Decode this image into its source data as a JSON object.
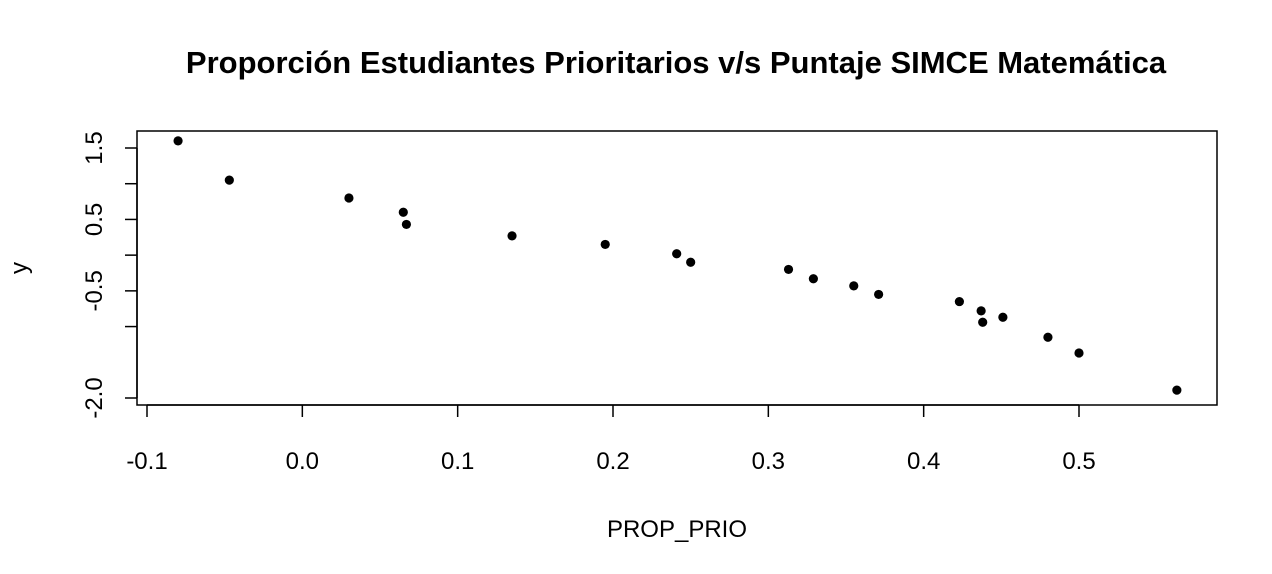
{
  "chart_data": {
    "type": "scatter",
    "title": "Proporción Estudiantes Prioritarios v/s Puntaje SIMCE Matemática",
    "xlabel": "PROP_PRIO",
    "ylabel": "y",
    "xlim": [
      -0.1,
      0.57
    ],
    "ylim": [
      -2.0,
      1.7
    ],
    "x_ticks": [
      -0.1,
      0.0,
      0.1,
      0.2,
      0.3,
      0.4,
      0.5
    ],
    "x_tick_labels": [
      "-0.1",
      "0.0",
      "0.1",
      "0.2",
      "0.3",
      "0.4",
      "0.5"
    ],
    "y_ticks": [
      -2.0,
      -1.0,
      -0.5,
      0.0,
      0.5,
      1.0,
      1.5
    ],
    "y_tick_labels": [
      "-2.0",
      "",
      "-0.5",
      "",
      "0.5",
      "",
      "1.5"
    ],
    "grid": false,
    "point_color": "#000000",
    "x": [
      -0.08,
      -0.047,
      0.03,
      0.065,
      0.067,
      0.135,
      0.195,
      0.241,
      0.25,
      0.313,
      0.329,
      0.355,
      0.371,
      0.423,
      0.437,
      0.438,
      0.451,
      0.48,
      0.5,
      0.563
    ],
    "y": [
      1.6,
      1.05,
      0.8,
      0.6,
      0.43,
      0.27,
      0.15,
      0.02,
      -0.1,
      -0.2,
      -0.33,
      -0.43,
      -0.55,
      -0.65,
      -0.78,
      -0.94,
      -0.87,
      -1.15,
      -1.37,
      -1.89
    ]
  }
}
